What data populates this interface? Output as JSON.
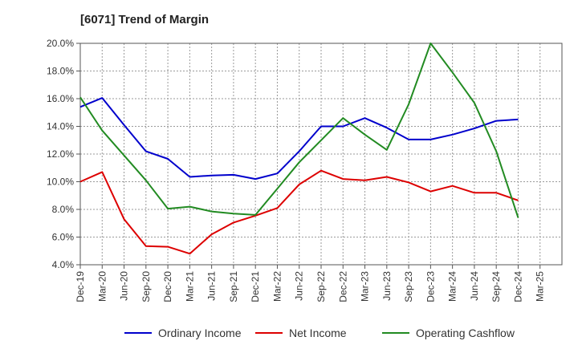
{
  "chart_data": {
    "type": "line",
    "title": "[6071]  Trend of Margin",
    "xlabel": "",
    "ylabel": "",
    "ylim": [
      4.0,
      20.0
    ],
    "yticks": [
      "4.0%",
      "6.0%",
      "8.0%",
      "10.0%",
      "12.0%",
      "14.0%",
      "16.0%",
      "18.0%",
      "20.0%"
    ],
    "ytick_values": [
      4,
      6,
      8,
      10,
      12,
      14,
      16,
      18,
      20
    ],
    "categories": [
      "Dec-19",
      "Mar-20",
      "Jun-20",
      "Sep-20",
      "Dec-20",
      "Mar-21",
      "Jun-21",
      "Sep-21",
      "Dec-21",
      "Mar-22",
      "Jun-22",
      "Sep-22",
      "Dec-22",
      "Mar-23",
      "Jun-23",
      "Sep-23",
      "Dec-23",
      "Mar-24",
      "Jun-24",
      "Sep-24",
      "Dec-24",
      "Mar-25"
    ],
    "grid": true,
    "legend_position": "bottom",
    "series": [
      {
        "name": "Ordinary Income",
        "color": "#0000cc",
        "values": [
          15.4,
          16.05,
          14.1,
          12.2,
          11.65,
          10.35,
          10.45,
          10.5,
          10.2,
          10.6,
          12.2,
          14.0,
          14.0,
          14.6,
          13.9,
          13.05,
          13.05,
          13.4,
          13.85,
          14.4,
          14.5,
          null
        ]
      },
      {
        "name": "Net Income",
        "color": "#dd0000",
        "values": [
          10.0,
          10.7,
          7.3,
          5.35,
          5.3,
          4.8,
          6.2,
          7.05,
          7.55,
          8.1,
          9.8,
          10.8,
          10.2,
          10.1,
          10.35,
          9.95,
          9.3,
          9.7,
          9.2,
          9.2,
          8.65,
          null
        ]
      },
      {
        "name": "Operating Cashflow",
        "color": "#228b22",
        "values": [
          16.1,
          13.7,
          11.9,
          10.1,
          8.05,
          8.2,
          7.85,
          7.7,
          7.6,
          9.5,
          11.4,
          13.0,
          14.6,
          13.4,
          12.3,
          15.6,
          20.0,
          17.9,
          15.7,
          12.2,
          7.4,
          null
        ]
      }
    ]
  }
}
